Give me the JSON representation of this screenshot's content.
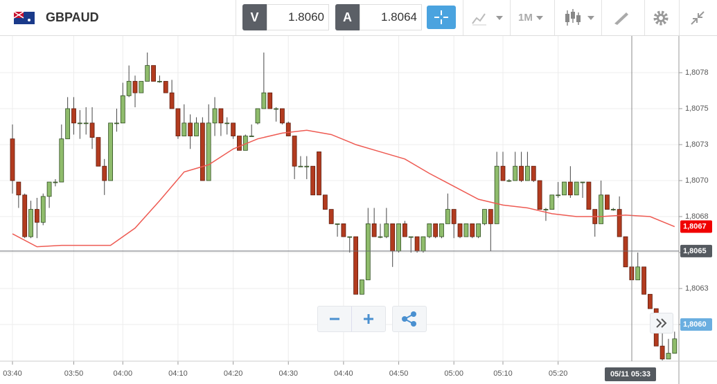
{
  "header": {
    "symbol": "GBPAUD",
    "bid_label": "V",
    "bid": "1.8060",
    "ask_label": "A",
    "ask": "1.8064",
    "timeframe": "1M"
  },
  "chart_data": {
    "type": "candlestick",
    "categories": [
      "03:40",
      null,
      null,
      null,
      null,
      null,
      null,
      null,
      null,
      null,
      "03:50",
      null,
      null,
      null,
      null,
      null,
      null,
      null,
      "04:00",
      null,
      null,
      null,
      null,
      null,
      null,
      null,
      null,
      "04:10",
      null,
      null,
      null,
      null,
      null,
      null,
      null,
      null,
      "04:20",
      null,
      null,
      null,
      null,
      null,
      null,
      null,
      null,
      "04:30",
      null,
      null,
      null,
      null,
      null,
      null,
      null,
      null,
      "04:40",
      null,
      null,
      null,
      null,
      null,
      null,
      null,
      null,
      "04:50",
      null,
      null,
      null,
      null,
      null,
      null,
      null,
      null,
      "05:00",
      null,
      null,
      null,
      null,
      null,
      null,
      null,
      "05:10",
      null,
      null,
      null,
      null,
      null,
      null,
      null,
      null,
      "05:20",
      null,
      null,
      null,
      null,
      null,
      null,
      null,
      null,
      null,
      null,
      null,
      null,
      null,
      null,
      null,
      null,
      null,
      null,
      null
    ],
    "open": [
      1.80729,
      1.80699,
      1.8069,
      1.80661,
      1.8068,
      1.80671,
      1.80689,
      1.80699,
      1.80699,
      1.80729,
      1.8075,
      1.8074,
      1.8074,
      1.8074,
      1.8073,
      1.8071,
      1.807,
      1.8074,
      1.8074,
      1.80759,
      1.80769,
      1.80761,
      1.80769,
      1.8078,
      1.80769,
      1.80769,
      1.80761,
      1.8075,
      1.80731,
      1.8074,
      1.80731,
      1.8074,
      1.807,
      1.8074,
      1.8075,
      1.8074,
      1.8074,
      1.80731,
      1.80721,
      1.80731,
      1.8074,
      1.8075,
      1.80761,
      1.8075,
      1.8075,
      1.8074,
      1.80731,
      1.8071,
      1.8071,
      1.8071,
      1.8072,
      1.8069,
      1.8068,
      1.8067,
      1.8067,
      1.80661,
      1.80661,
      1.80621,
      1.80631,
      1.8067,
      1.80661,
      1.80661,
      1.8067,
      1.80651,
      1.8067,
      1.80661,
      1.80661,
      1.80651,
      1.80661,
      1.8067,
      1.80661,
      1.8067,
      1.8068,
      1.8067,
      1.80661,
      1.8067,
      1.80661,
      1.8067,
      1.8068,
      1.8067,
      1.8071,
      1.807,
      1.807,
      1.8071,
      1.807,
      1.8071,
      1.807,
      1.8068,
      1.8068,
      1.8069,
      1.8069,
      1.80699,
      1.8069,
      1.80699,
      1.80699,
      1.8068,
      1.8067,
      1.8069,
      1.8068,
      1.8068,
      1.80661,
      1.8064,
      1.80631,
      1.8064,
      1.80621,
      1.80611,
      1.80585,
      1.80576,
      1.8058
    ],
    "high": [
      1.80739,
      1.80699,
      1.80691,
      1.80686,
      1.80688,
      1.80691,
      1.80699,
      1.80701,
      1.80739,
      1.80758,
      1.80758,
      1.80749,
      1.80751,
      1.80751,
      1.8073,
      1.80715,
      1.8074,
      1.8075,
      1.80768,
      1.8078,
      1.80773,
      1.80769,
      1.80789,
      1.8078,
      1.80773,
      1.80769,
      1.8077,
      1.8075,
      1.80753,
      1.80746,
      1.80744,
      1.80744,
      1.80753,
      1.80758,
      1.8075,
      1.80744,
      1.8074,
      1.80731,
      1.80732,
      1.80739,
      1.8075,
      1.80789,
      1.80761,
      1.80751,
      1.8075,
      1.80741,
      1.80731,
      1.80717,
      1.80717,
      1.8071,
      1.8072,
      1.8069,
      1.8068,
      1.8067,
      1.8067,
      1.80661,
      1.80661,
      1.80631,
      1.80681,
      1.80681,
      1.8067,
      1.80681,
      1.8067,
      1.8067,
      1.80672,
      1.80661,
      1.80661,
      1.80661,
      1.8067,
      1.8067,
      1.8067,
      1.80691,
      1.8068,
      1.8067,
      1.8067,
      1.8067,
      1.8067,
      1.8068,
      1.8068,
      1.8072,
      1.8072,
      1.80701,
      1.8072,
      1.8072,
      1.8072,
      1.8071,
      1.807,
      1.80681,
      1.8069,
      1.80699,
      1.80699,
      1.8071,
      1.80699,
      1.80699,
      1.80699,
      1.8068,
      1.807,
      1.8069,
      1.80681,
      1.80689,
      1.80661,
      1.8065,
      1.8065,
      1.8064,
      1.80621,
      1.80611,
      1.80595,
      1.8059,
      1.80595
    ],
    "low": [
      1.80691,
      1.80681,
      1.8066,
      1.8066,
      1.8066,
      1.80669,
      1.80681,
      1.80696,
      1.80699,
      1.80729,
      1.80732,
      1.80729,
      1.80732,
      1.80722,
      1.8071,
      1.8069,
      1.807,
      1.80734,
      1.8074,
      1.80758,
      1.80751,
      1.80761,
      1.80769,
      1.80769,
      1.80768,
      1.80761,
      1.8075,
      1.80729,
      1.80731,
      1.80722,
      1.80731,
      1.807,
      1.807,
      1.80731,
      1.80731,
      1.80732,
      1.80729,
      1.80721,
      1.80721,
      1.80731,
      1.80739,
      1.8075,
      1.8075,
      1.80741,
      1.80739,
      1.80731,
      1.80701,
      1.8071,
      1.80701,
      1.8069,
      1.8069,
      1.8068,
      1.8067,
      1.80661,
      1.80661,
      1.8065,
      1.80621,
      1.80621,
      1.80631,
      1.80661,
      1.8066,
      1.8066,
      1.8064,
      1.8065,
      1.80661,
      1.8065,
      1.8065,
      1.8065,
      1.8066,
      1.8066,
      1.8066,
      1.8067,
      1.8066,
      1.8066,
      1.80661,
      1.8066,
      1.8066,
      1.80669,
      1.80651,
      1.8067,
      1.807,
      1.80699,
      1.807,
      1.80699,
      1.807,
      1.80699,
      1.8068,
      1.80672,
      1.8068,
      1.80688,
      1.8069,
      1.80688,
      1.8069,
      1.80688,
      1.8068,
      1.80661,
      1.8067,
      1.8068,
      1.80679,
      1.80661,
      1.8064,
      1.80631,
      1.80631,
      1.80621,
      1.80611,
      1.80585,
      1.80575,
      1.80576,
      1.8058
    ],
    "close": [
      1.807,
      1.8069,
      1.80661,
      1.8068,
      1.80671,
      1.80689,
      1.80699,
      1.80699,
      1.80729,
      1.8075,
      1.8074,
      1.8074,
      1.8074,
      1.8073,
      1.8071,
      1.807,
      1.8074,
      1.8074,
      1.80759,
      1.80769,
      1.80761,
      1.80769,
      1.8078,
      1.80769,
      1.80769,
      1.80761,
      1.8075,
      1.80731,
      1.8074,
      1.80731,
      1.8074,
      1.807,
      1.8074,
      1.8075,
      1.8074,
      1.8074,
      1.80731,
      1.80721,
      1.80731,
      1.80731,
      1.8075,
      1.80761,
      1.8075,
      1.8075,
      1.8074,
      1.80731,
      1.8071,
      1.8071,
      1.8071,
      1.8069,
      1.8069,
      1.8068,
      1.8067,
      1.8067,
      1.80661,
      1.80661,
      1.80621,
      1.80631,
      1.8067,
      1.80661,
      1.80661,
      1.8067,
      1.80651,
      1.8067,
      1.80661,
      1.80661,
      1.80651,
      1.80661,
      1.8067,
      1.80661,
      1.8067,
      1.8068,
      1.8067,
      1.80661,
      1.8067,
      1.80661,
      1.8067,
      1.8068,
      1.8067,
      1.8071,
      1.807,
      1.807,
      1.8071,
      1.807,
      1.8071,
      1.807,
      1.8068,
      1.8068,
      1.8069,
      1.8069,
      1.80699,
      1.8069,
      1.80699,
      1.80699,
      1.8068,
      1.8067,
      1.8069,
      1.8068,
      1.8068,
      1.80661,
      1.8064,
      1.80631,
      1.8064,
      1.80621,
      1.80611,
      1.80585,
      1.80576,
      1.8058,
      1.8059
    ],
    "up_color": "#8fbc6c",
    "down_color": "#b23b1f",
    "moving_average": {
      "color": "#ee5a52",
      "x": [
        0,
        4,
        8,
        12,
        16,
        20,
        24,
        28,
        32,
        36,
        40,
        44,
        48,
        52,
        56,
        60,
        64,
        68,
        72,
        76,
        80,
        84,
        88,
        92,
        96,
        100,
        104,
        108
      ],
      "values": [
        1.80663,
        1.80654,
        1.80655,
        1.80655,
        1.80655,
        1.80667,
        1.80686,
        1.80706,
        1.80711,
        1.80722,
        1.80729,
        1.80733,
        1.80735,
        1.80732,
        1.80725,
        1.8072,
        1.80715,
        1.80705,
        1.80696,
        1.80687,
        1.80683,
        1.80681,
        1.80677,
        1.80675,
        1.80675,
        1.80676,
        1.80675,
        1.80668
      ]
    },
    "ylim": [
      1.805745,
      1.808005
    ],
    "yticks": [
      {
        "value": 1.80775,
        "label": "1,8078"
      },
      {
        "value": 1.8075,
        "label": "1,8075"
      },
      {
        "value": 1.80725,
        "label": "1,8073"
      },
      {
        "value": 1.807,
        "label": "1,8070"
      },
      {
        "value": 1.80675,
        "label": "1,8068"
      },
      {
        "value": 1.8065,
        "label": "1,8065"
      },
      {
        "value": 1.80625,
        "label": "1,8063"
      },
      {
        "value": 1.806,
        "label": "1,8060"
      }
    ],
    "grid": true,
    "price_markers": [
      {
        "value": 1.80668,
        "label": "1,8067",
        "color": "#f00000"
      },
      {
        "value": 1.80651,
        "label": "1,8065",
        "color": "#555a60",
        "line": true
      },
      {
        "value": 1.806,
        "label": "1,8060",
        "color": "#6aaee0"
      }
    ],
    "crosshair_label": "05/11 05:33"
  }
}
